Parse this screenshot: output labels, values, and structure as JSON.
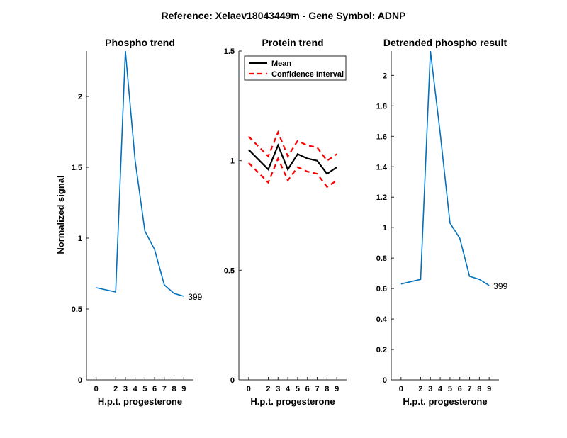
{
  "figure": {
    "suptitle": "Reference:  Xelaev18043449m - Gene Symbol:  ADNP",
    "ylabel": "Normalized signal"
  },
  "colors": {
    "phospho": "#0072bd",
    "mean": "#000000",
    "ci": "#ff0000"
  },
  "chart_data": [
    {
      "type": "line",
      "title": "Phospho trend",
      "xlabel": "H.p.t. progesterone",
      "ylabel": "Normalized signal",
      "x": [
        0,
        2,
        3,
        4,
        5,
        6,
        7,
        8,
        9
      ],
      "xticks": [
        "0",
        "2",
        "3",
        "4",
        "5",
        "6",
        "7",
        "8",
        "9"
      ],
      "ylim": [
        0,
        2.32
      ],
      "yticks": [
        "0",
        "0.5",
        "1",
        "1.5",
        "2"
      ],
      "series": [
        {
          "values": [
            0.65,
            0.62,
            2.32,
            1.55,
            1.05,
            0.92,
            0.67,
            0.61,
            0.59
          ]
        }
      ],
      "end_label": "399",
      "grid": false
    },
    {
      "type": "line",
      "title": "Protein trend",
      "xlabel": "H.p.t. progesterone",
      "x": [
        0,
        2,
        3,
        4,
        5,
        6,
        7,
        8,
        9
      ],
      "xticks": [
        "0",
        "2",
        "3",
        "4",
        "5",
        "6",
        "7",
        "8",
        "9"
      ],
      "ylim": [
        0,
        1.5
      ],
      "yticks": [
        "0",
        "0.5",
        "1",
        "1.5"
      ],
      "series": [
        {
          "name": "Mean",
          "style": "solid",
          "values": [
            1.05,
            0.96,
            1.07,
            0.96,
            1.03,
            1.01,
            1.0,
            0.94,
            0.97
          ]
        },
        {
          "name": "Confidence Interval",
          "style": "dashed",
          "values": [
            1.11,
            1.02,
            1.13,
            1.02,
            1.09,
            1.07,
            1.06,
            1.0,
            1.03
          ]
        },
        {
          "style": "dashed",
          "values": [
            0.99,
            0.9,
            1.01,
            0.91,
            0.97,
            0.95,
            0.94,
            0.88,
            0.91
          ]
        }
      ],
      "legend": {
        "position": "top-right",
        "entries": [
          "Mean",
          "Confidence Interval"
        ]
      },
      "grid": false
    },
    {
      "type": "line",
      "title": "Detrended phospho result",
      "xlabel": "H.p.t. progesterone",
      "x": [
        0,
        2,
        3,
        4,
        5,
        6,
        7,
        8,
        9
      ],
      "xticks": [
        "0",
        "2",
        "3",
        "4",
        "5",
        "6",
        "7",
        "8",
        "9"
      ],
      "ylim": [
        0,
        2.16
      ],
      "yticks": [
        "0",
        "0.2",
        "0.4",
        "0.6",
        "0.8",
        "1",
        "1.2",
        "1.4",
        "1.6",
        "1.8",
        "2"
      ],
      "series": [
        {
          "values": [
            0.63,
            0.66,
            2.16,
            1.62,
            1.03,
            0.93,
            0.68,
            0.66,
            0.62
          ]
        }
      ],
      "end_label": "399",
      "grid": false
    }
  ]
}
